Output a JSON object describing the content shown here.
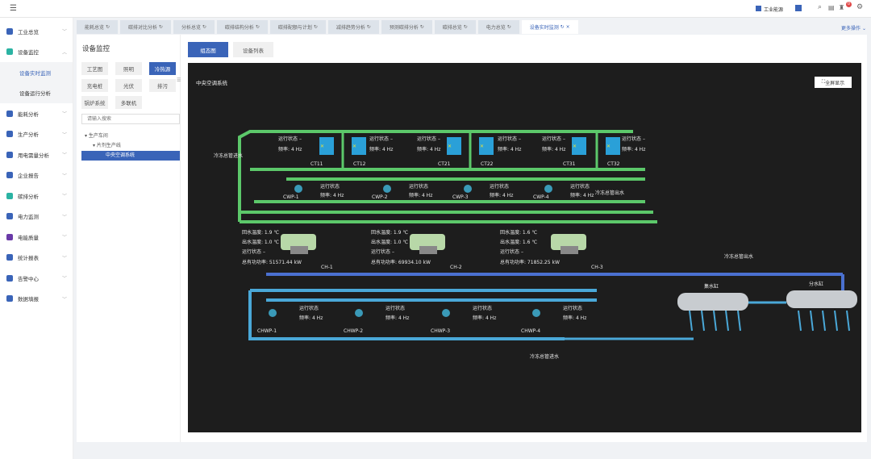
{
  "topbar": {
    "brand_label": "工业能源",
    "badge_count": "0"
  },
  "sidebar": {
    "items": [
      {
        "label": "工业总览",
        "color": "#3a64b8"
      },
      {
        "label": "设备监控",
        "color": "#2bb3a3",
        "expanded": true,
        "children": [
          {
            "label": "设备实时监测",
            "active": true
          },
          {
            "label": "设备运行分析"
          }
        ]
      },
      {
        "label": "能耗分析",
        "color": "#3a64b8"
      },
      {
        "label": "生产分析",
        "color": "#3a64b8"
      },
      {
        "label": "用电需量分析",
        "color": "#3a64b8"
      },
      {
        "label": "企业报告",
        "color": "#3a64b8"
      },
      {
        "label": "碳排分析",
        "color": "#2bb3a3"
      },
      {
        "label": "电力监测",
        "color": "#3a64b8"
      },
      {
        "label": "电能质量",
        "color": "#6a3aa8"
      },
      {
        "label": "统计报表",
        "color": "#3a64b8"
      },
      {
        "label": "告警中心",
        "color": "#3a64b8"
      },
      {
        "label": "数据填报",
        "color": "#3a64b8"
      }
    ]
  },
  "tabs": [
    "能耗总览",
    "碳排对比分析",
    "分析总览",
    "碳排结构分析",
    "碳排配额与计划",
    "减排趋势分析",
    "预测碳排分析",
    "碳排总览",
    "电力总览",
    "设备实时监测"
  ],
  "more_label": "更多操作",
  "panel": {
    "title": "设备监控",
    "categories": [
      "工艺图",
      "照明",
      "冷热源",
      "充电桩",
      "光伏",
      "排污",
      "锅炉系统",
      "多联机"
    ],
    "active_category": "冷热源",
    "search_placeholder": "请输入搜索",
    "tree": [
      "生产车间",
      "片剂生产线",
      "中央空调系统"
    ]
  },
  "view_buttons": [
    "组态图",
    "设备列表"
  ],
  "diagram": {
    "title": "中央空调系统",
    "fullscreen_label": "全屏显示",
    "status_label": "运行状态",
    "status_value": "–",
    "freq_label": "频率:",
    "freq_value": "4 Hz",
    "towers": [
      "CT11",
      "CT12",
      "CT21",
      "CT22",
      "CT31",
      "CT32"
    ],
    "cw_pumps": [
      "CWP-1",
      "CWP-2",
      "CWP-3",
      "CWP-4"
    ],
    "chw_pumps": [
      "CHWP-1",
      "CHWP-2",
      "CHWP-3",
      "CHWP-4"
    ],
    "chillers": [
      {
        "name": "CH-1",
        "return_temp": "回水温度: 1.9 ℃",
        "supply_temp": "出水温度: 1.0 ℃",
        "power": "总有功功率: 51571.44 kW"
      },
      {
        "name": "CH-2",
        "return_temp": "回水温度: 1.9 ℃",
        "supply_temp": "出水温度: 1.0 ℃",
        "power": "总有功功率: 69934.10 kW"
      },
      {
        "name": "CH-3",
        "return_temp": "回水温度: 1.6 ℃",
        "supply_temp": "出水温度: 1.6 ℃",
        "power": "总有功功率: 71852.25 kW"
      }
    ],
    "labels": {
      "cooling_in": "冷冻总管进水",
      "cooling_out": "冷冻总管出水",
      "chw_out": "冷冻总管出水",
      "chw_in": "冷冻总管进水",
      "collector": "集水缸",
      "distributor": "分水缸"
    }
  }
}
